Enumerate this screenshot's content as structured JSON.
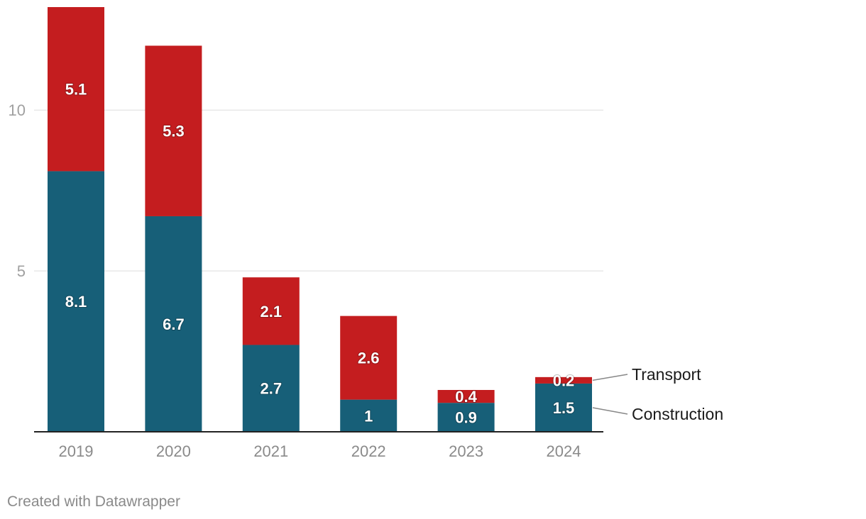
{
  "chart_data": {
    "type": "bar",
    "stacked": true,
    "categories": [
      "2019",
      "2020",
      "2021",
      "2022",
      "2023",
      "2024"
    ],
    "series": [
      {
        "name": "Construction",
        "color": "#175f78",
        "values": [
          8.1,
          6.7,
          2.7,
          1,
          0.9,
          1.5
        ],
        "labels": [
          "8.1",
          "6.7",
          "2.7",
          "1",
          "0.9",
          "1.5"
        ]
      },
      {
        "name": "Transport",
        "color": "#c41d1f",
        "values": [
          5.1,
          5.3,
          2.1,
          2.6,
          0.4,
          0.2
        ],
        "labels": [
          "5.1",
          "5.3",
          "2.1",
          "2.6",
          "0.4",
          "0.2"
        ]
      }
    ],
    "yticks": [
      5,
      10
    ],
    "ytick_labels": [
      "5",
      "10"
    ],
    "ylim": [
      0,
      13.2
    ],
    "grid": true,
    "legend_placement": "right, inline labels at last bar",
    "title": "",
    "xlabel": "",
    "ylabel": ""
  },
  "footer": {
    "credit": "Created with Datawrapper"
  }
}
